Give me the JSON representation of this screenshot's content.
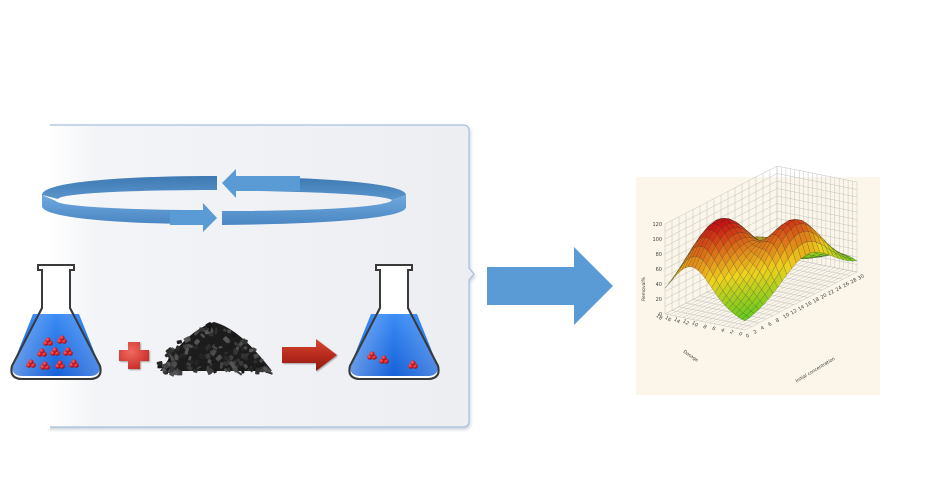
{
  "colors": {
    "panel_fill": "#eef0f3",
    "panel_border": "#9bb3d4",
    "rotation_arrow": "#5b9bd5",
    "process_arrow": "#5b9bd5",
    "liquid": "#1e78f0",
    "particles": "#d01e28",
    "plus_sign": "#d62d2d",
    "reaction_arrow": "#b0261c",
    "adsorbent": "#1f1f1f",
    "plot_background": "#fbf6e9",
    "surface_low": "#3cc81e",
    "surface_mid": "#f0d21e",
    "surface_high": "#c81414"
  },
  "icons": {
    "rotation": "circular-rotation-arrows-icon",
    "flask_before": "erlenmeyer-flask-icon",
    "plus": "plus-icon",
    "adsorbent": "charcoal-pile-icon",
    "reaction": "right-arrow-icon",
    "flask_after": "erlenmeyer-flask-icon",
    "process": "block-right-arrow-icon"
  },
  "plot": {
    "z_ticks": [
      "0",
      "20",
      "40",
      "60",
      "80",
      "100",
      "120"
    ],
    "x_ticks": [
      "0",
      "2",
      "4",
      "6",
      "8",
      "10",
      "12",
      "14",
      "16",
      "18",
      "20",
      "22",
      "24",
      "26",
      "28",
      "30"
    ],
    "y_ticks": [
      "18",
      "16",
      "14",
      "12",
      "10",
      "8",
      "6",
      "4",
      "2",
      "0"
    ],
    "z_label": "Removal%",
    "x_label": "Initial concentration",
    "y_label": "Dosage"
  }
}
